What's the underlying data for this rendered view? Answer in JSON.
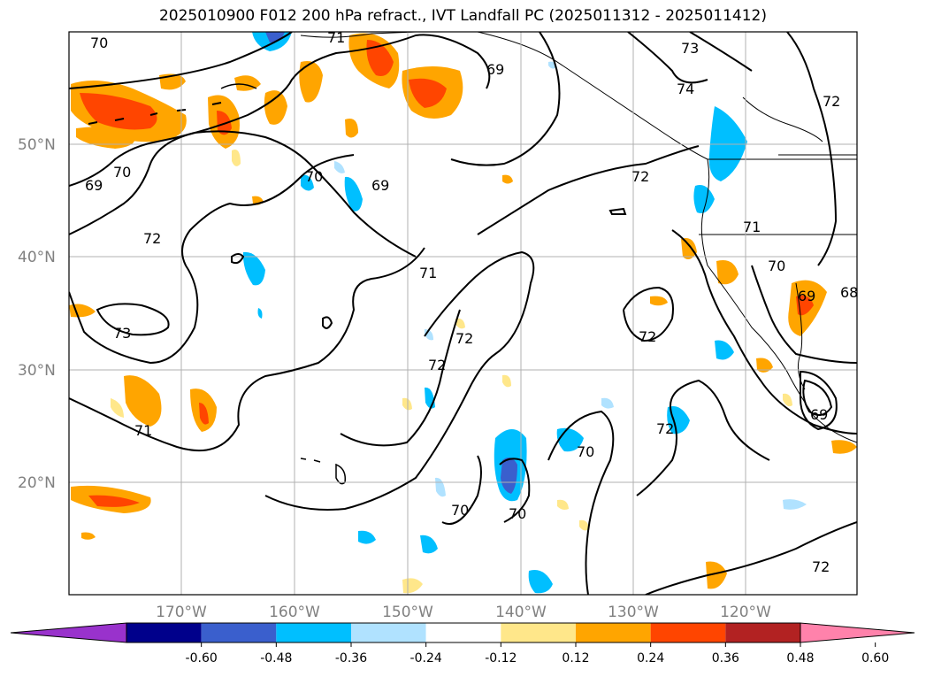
{
  "title": "2025010900 F012 200 hPa refract., IVT Landfall PC (2025011312 - 2025011412)",
  "lat_labels": [
    "50°N",
    "40°N",
    "30°N",
    "20°N"
  ],
  "lon_labels": [
    "170°W",
    "160°W",
    "150°W",
    "140°W",
    "130°W",
    "120°W"
  ],
  "contour_labels": [
    "70",
    "71",
    "73",
    "74",
    "69",
    "69",
    "70",
    "69",
    "70",
    "72",
    "72",
    "71",
    "73",
    "71",
    "72",
    "72",
    "72",
    "70",
    "70",
    "70",
    "71",
    "70",
    "72",
    "72",
    "69",
    "68",
    "69",
    "72"
  ],
  "colorbar": {
    "ticks": [
      "-0.60",
      "-0.48",
      "-0.36",
      "-0.24",
      "-0.12",
      "0.12",
      "0.24",
      "0.36",
      "0.48",
      "0.60"
    ],
    "colors": [
      "#9932cc",
      "#00008b",
      "#3a5fcd",
      "#00bfff",
      "#b0e2ff",
      "#ffffff",
      "#ffe78a",
      "#ffa500",
      "#ff4500",
      "#b22222",
      "#ff82ab"
    ],
    "under_color": "#9932cc",
    "over_color": "#ff82ab"
  },
  "colors": {
    "contour": "#000000",
    "grid": "#b0b0b0",
    "label_gray": "#808080"
  }
}
